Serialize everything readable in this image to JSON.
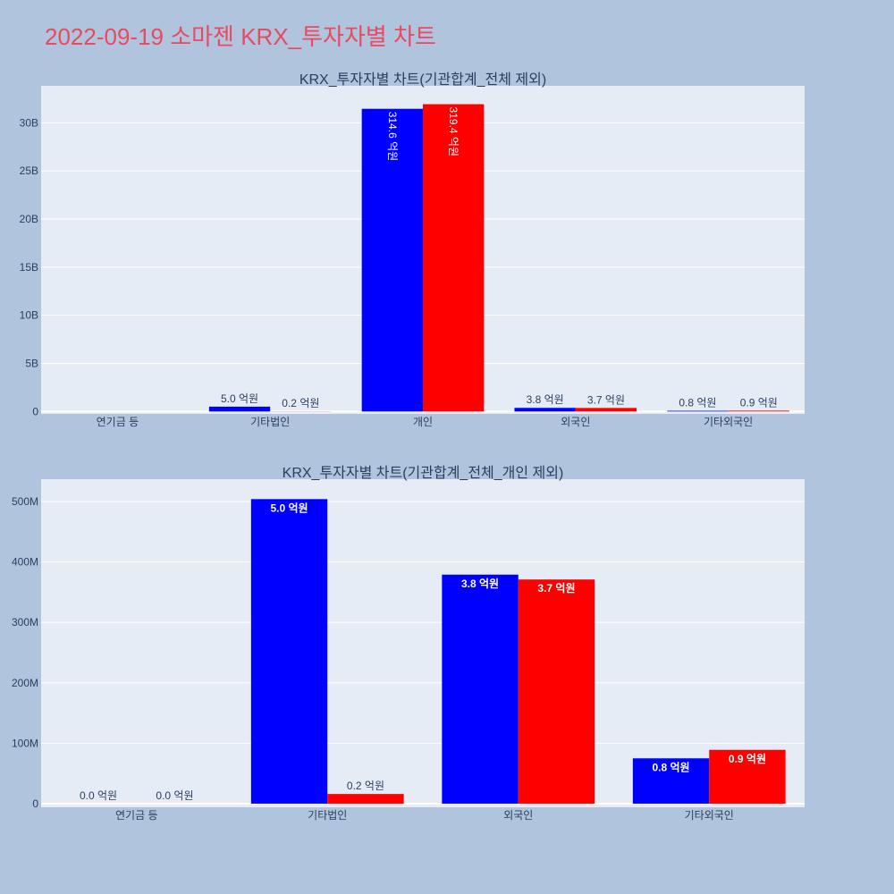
{
  "title": "2022-09-19 소마젠 KRX_투자자별 차트",
  "colors": {
    "page_background": "#B0C4DE",
    "plot_background": "#E5ECF6",
    "grid": "#FFFFFF",
    "title": "#E84A5F",
    "axis_text": "#2A3F5F",
    "inside_label": "#FFFFFF"
  },
  "chart_data": [
    {
      "type": "bar",
      "title": "KRX_투자자별 차트(기관합계_전체 제외)",
      "categories": [
        "연기금 등",
        "기타법인",
        "개인",
        "외국인",
        "기타외국인"
      ],
      "series": [
        {
          "color": "#0000FF",
          "values": [
            0,
            504000000,
            31460000000,
            379000000,
            75000000
          ],
          "labels": [
            "",
            "5.0 억원",
            "314.6 억원",
            "3.8 억원",
            "0.8 억원"
          ]
        },
        {
          "color": "#FF0000",
          "values": [
            0,
            16000000,
            31940000000,
            371000000,
            89000000
          ],
          "labels": [
            "",
            "0.2 억원",
            "319.4 억원",
            "3.7 억원",
            "0.9 억원"
          ]
        }
      ],
      "yticks": [
        0,
        5000000000,
        10000000000,
        15000000000,
        20000000000,
        25000000000,
        30000000000
      ],
      "ytick_labels": [
        "0",
        "5B",
        "10B",
        "15B",
        "20B",
        "25B",
        "30B"
      ],
      "ylim": [
        -250000000,
        33850000000
      ],
      "grid": true,
      "legend": false
    },
    {
      "type": "bar",
      "title": "KRX_투자자별 차트(기관합계_전체_개인 제외)",
      "categories": [
        "연기금 등",
        "기타법인",
        "외국인",
        "기타외국인"
      ],
      "series": [
        {
          "color": "#0000FF",
          "values": [
            0,
            504000000,
            379000000,
            75000000
          ],
          "labels": [
            "0.0 억원",
            "5.0 억원",
            "3.8 억원",
            "0.8 억원"
          ]
        },
        {
          "color": "#FF0000",
          "values": [
            0,
            16000000,
            371000000,
            89000000
          ],
          "labels": [
            "0.0 억원",
            "0.2 억원",
            "3.7 억원",
            "0.9 억원"
          ]
        }
      ],
      "yticks": [
        0,
        100000000,
        200000000,
        300000000,
        400000000,
        500000000
      ],
      "ytick_labels": [
        "0",
        "100M",
        "200M",
        "300M",
        "400M",
        "500M"
      ],
      "ylim": [
        -6000000,
        537000000
      ],
      "grid": true,
      "legend": false
    }
  ]
}
